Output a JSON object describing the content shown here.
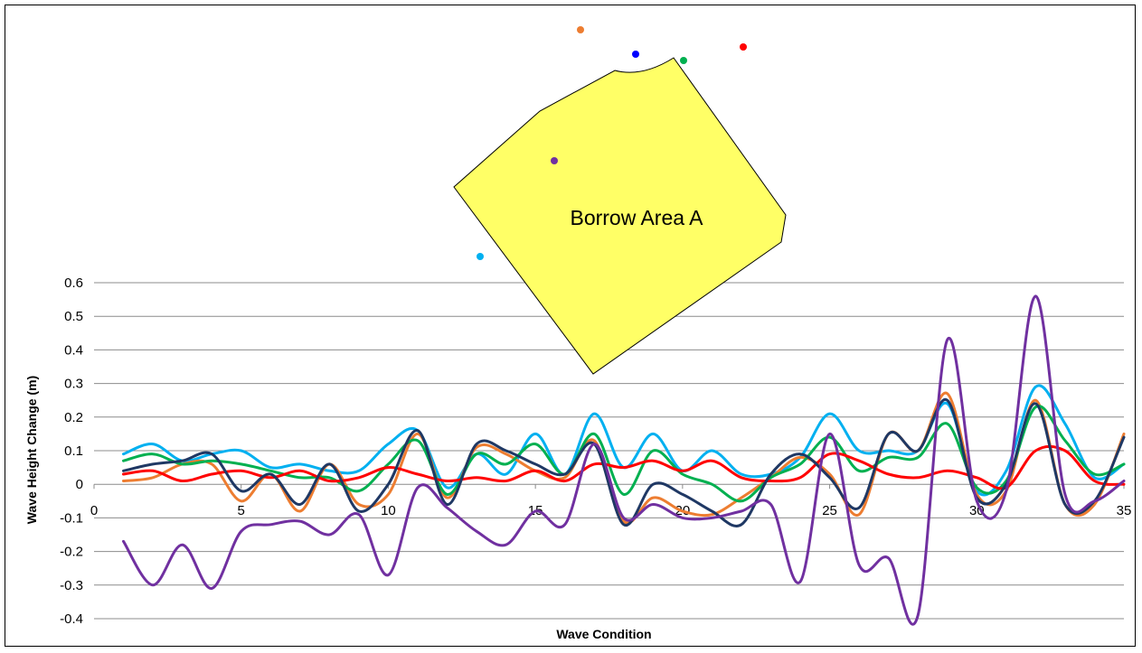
{
  "chart_data": {
    "type": "line",
    "title": "",
    "xlabel": "Wave Condition",
    "ylabel": "Wave Height Change (m)",
    "xlim": [
      0,
      35
    ],
    "ylim": [
      -0.4,
      0.6
    ],
    "x_ticks": [
      0,
      5,
      10,
      15,
      20,
      25,
      30,
      35
    ],
    "y_ticks": [
      -0.4,
      -0.3,
      -0.2,
      -0.1,
      0,
      0.1,
      0.2,
      0.3,
      0.4,
      0.5,
      0.6
    ],
    "grid": "horizontal",
    "legend": "none",
    "x": [
      1,
      2,
      3,
      4,
      5,
      6,
      7,
      8,
      9,
      10,
      11,
      12,
      13,
      14,
      15,
      16,
      17,
      18,
      19,
      20,
      21,
      22,
      23,
      24,
      25,
      26,
      27,
      28,
      29,
      30,
      31,
      32,
      33,
      34,
      35
    ],
    "series": [
      {
        "color": "#00b0f0",
        "values": [
          0.09,
          0.12,
          0.07,
          0.09,
          0.1,
          0.05,
          0.06,
          0.04,
          0.04,
          0.12,
          0.16,
          -0.01,
          0.09,
          0.03,
          0.15,
          0.03,
          0.21,
          0.05,
          0.15,
          0.04,
          0.1,
          0.03,
          0.03,
          0.08,
          0.21,
          0.1,
          0.1,
          0.1,
          0.24,
          -0.02,
          0.04,
          0.29,
          0.18,
          0.02,
          0.06
        ]
      },
      {
        "color": "#ed7d31",
        "values": [
          0.01,
          0.02,
          0.06,
          0.06,
          -0.05,
          0.03,
          -0.08,
          0.06,
          -0.06,
          -0.03,
          0.15,
          -0.04,
          0.11,
          0.09,
          0.04,
          0.02,
          0.13,
          -0.11,
          -0.04,
          -0.08,
          -0.09,
          -0.04,
          0.02,
          0.08,
          0.03,
          -0.09,
          0.15,
          0.1,
          0.27,
          -0.03,
          -0.02,
          0.25,
          -0.06,
          -0.06,
          0.15
        ]
      },
      {
        "color": "#00b050",
        "values": [
          0.07,
          0.09,
          0.06,
          0.07,
          0.06,
          0.04,
          0.02,
          0.02,
          -0.02,
          0.06,
          0.13,
          -0.03,
          0.09,
          0.06,
          0.12,
          0.03,
          0.15,
          -0.03,
          0.1,
          0.03,
          0.0,
          -0.05,
          0.02,
          0.06,
          0.14,
          0.04,
          0.08,
          0.08,
          0.18,
          -0.01,
          0.01,
          0.23,
          0.13,
          0.03,
          0.06
        ]
      },
      {
        "color": "#ff0000",
        "values": [
          0.03,
          0.04,
          0.01,
          0.03,
          0.04,
          0.02,
          0.04,
          0.01,
          0.02,
          0.05,
          0.03,
          0.01,
          0.02,
          0.01,
          0.04,
          0.01,
          0.06,
          0.05,
          0.07,
          0.04,
          0.07,
          0.02,
          0.01,
          0.02,
          0.09,
          0.07,
          0.03,
          0.02,
          0.04,
          0.02,
          -0.01,
          0.1,
          0.1,
          0.01,
          0.0
        ]
      },
      {
        "color": "#1f3864",
        "values": [
          0.04,
          0.06,
          0.07,
          0.09,
          -0.02,
          0.03,
          -0.06,
          0.06,
          -0.08,
          0.0,
          0.16,
          -0.06,
          0.12,
          0.1,
          0.06,
          0.03,
          0.12,
          -0.12,
          0.0,
          -0.03,
          -0.08,
          -0.12,
          0.03,
          0.09,
          0.02,
          -0.07,
          0.15,
          0.1,
          0.25,
          -0.04,
          0.0,
          0.24,
          -0.06,
          -0.05,
          0.14
        ]
      },
      {
        "color": "#7030a0",
        "values": [
          -0.17,
          -0.3,
          -0.18,
          -0.31,
          -0.14,
          -0.12,
          -0.11,
          -0.15,
          -0.09,
          -0.27,
          -0.01,
          -0.07,
          -0.14,
          -0.18,
          -0.08,
          -0.12,
          0.12,
          -0.1,
          -0.06,
          -0.1,
          -0.1,
          -0.08,
          -0.06,
          -0.29,
          0.15,
          -0.24,
          -0.22,
          -0.39,
          0.43,
          -0.05,
          -0.02,
          0.56,
          -0.03,
          -0.05,
          0.01
        ]
      }
    ]
  },
  "inset": {
    "label": "Borrow Area A",
    "fill_color": "#ffff66",
    "point_colors": [
      "#ed7d31",
      "#0000ff",
      "#00b050",
      "#ff0000",
      "#7030a0",
      "#00b0f0"
    ]
  }
}
